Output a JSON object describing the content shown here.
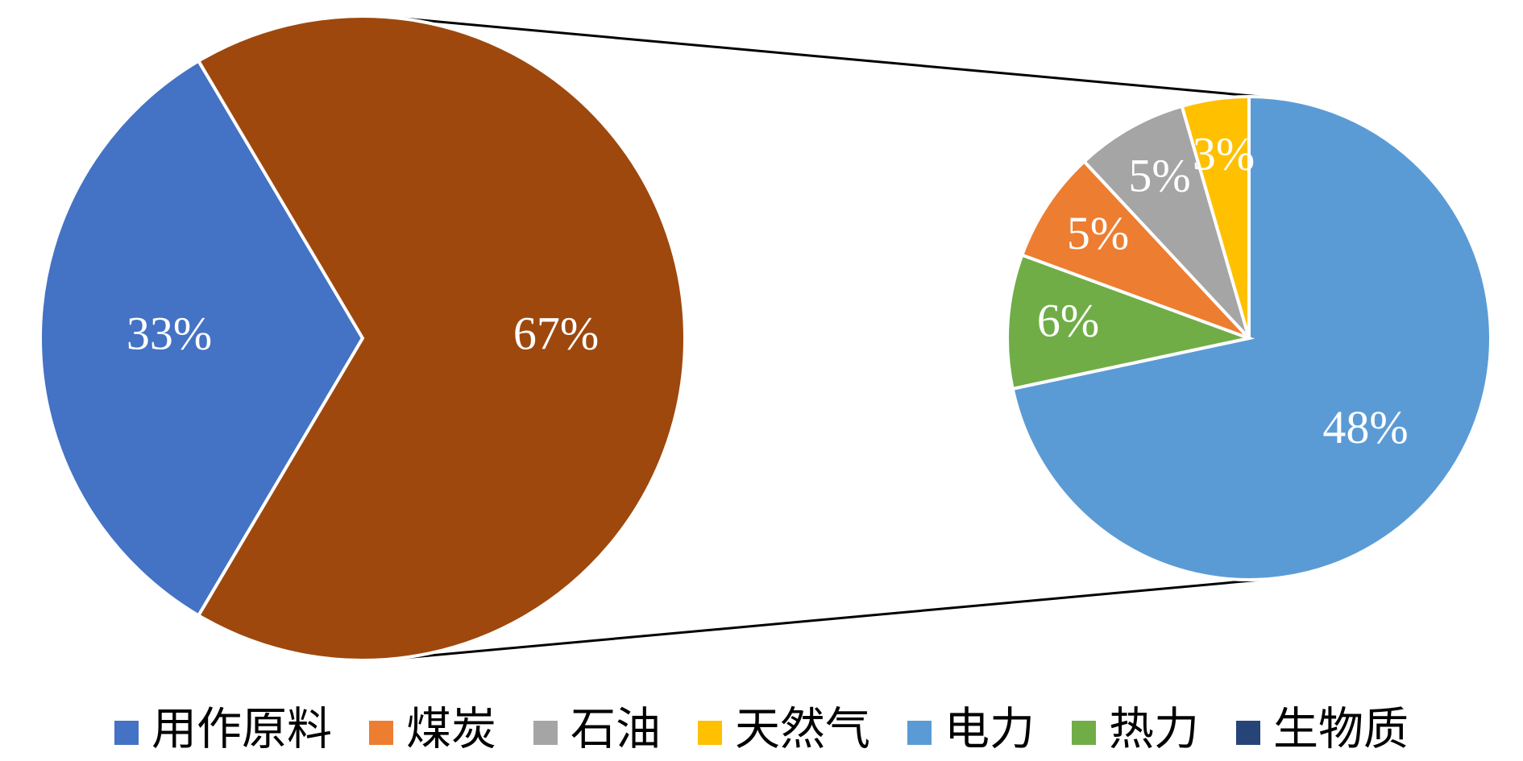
{
  "chart_data": {
    "type": "pie",
    "subtype": "pie-of-pie",
    "main_pie": {
      "slices": [
        {
          "category": "用作原料",
          "value": 33,
          "label": "33%",
          "color": "#4472C4"
        },
        {
          "category_ref": "secondary",
          "value": 67,
          "label": "67%",
          "color": "#9E480E"
        }
      ]
    },
    "secondary_pie": {
      "slices": [
        {
          "category": "电力",
          "value": 48,
          "label": "48%",
          "color": "#5B9BD5"
        },
        {
          "category": "热力",
          "value": 6,
          "label": "6%",
          "color": "#70AD47"
        },
        {
          "category": "煤炭",
          "value": 5,
          "label": "5%",
          "color": "#ED7D31"
        },
        {
          "category": "石油",
          "value": 5,
          "label": "5%",
          "color": "#A5A5A5"
        },
        {
          "category": "天然气",
          "value": 3,
          "label": "3%",
          "color": "#FFC000"
        }
      ]
    },
    "legend": {
      "placement": "bottom",
      "items": [
        {
          "label": "用作原料",
          "color": "#4472C4"
        },
        {
          "label": "煤炭",
          "color": "#ED7D31"
        },
        {
          "label": "石油",
          "color": "#A5A5A5"
        },
        {
          "label": "天然气",
          "color": "#FFC000"
        },
        {
          "label": "电力",
          "color": "#5B9BD5"
        },
        {
          "label": "热力",
          "color": "#70AD47"
        },
        {
          "label": "生物质",
          "color": "#264478"
        }
      ]
    }
  }
}
